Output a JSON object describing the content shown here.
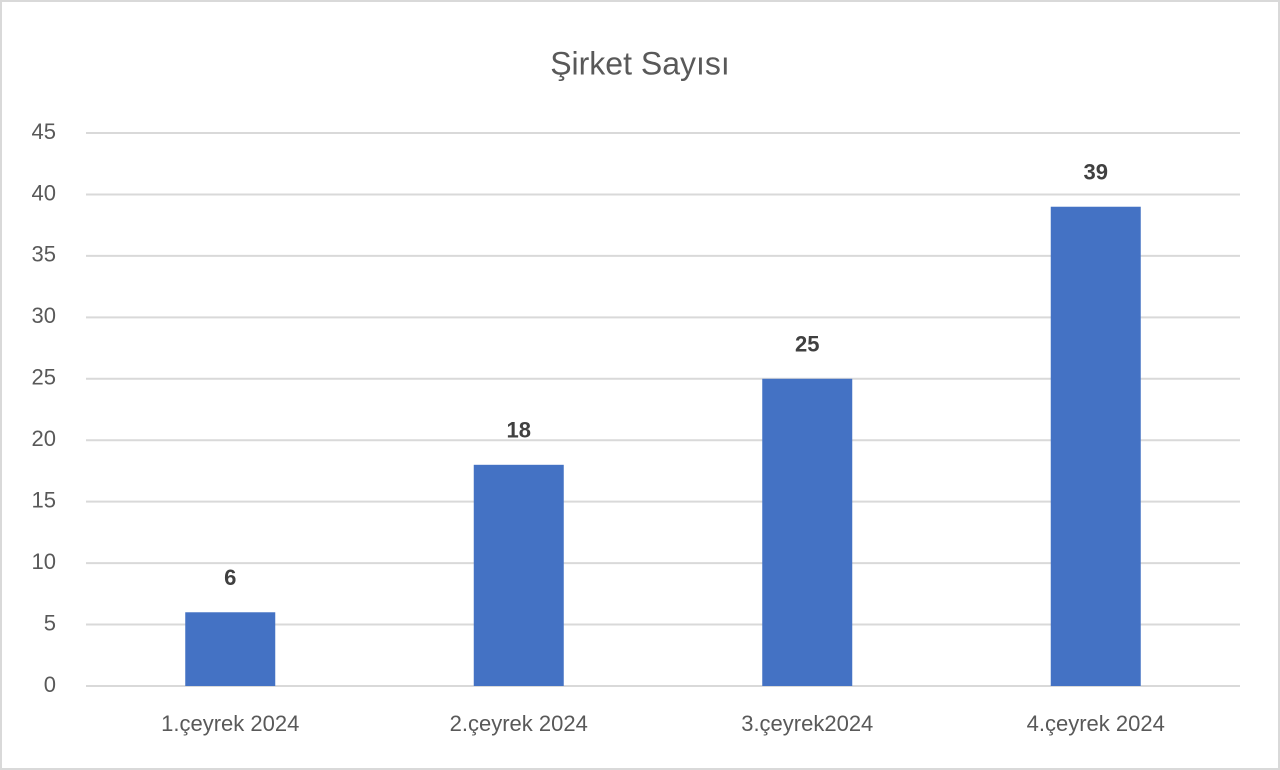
{
  "chart_data": {
    "type": "bar",
    "title": "Şirket Sayısı",
    "categories": [
      "1.çeyrek 2024",
      "2.çeyrek 2024",
      "3.çeyrek2024",
      "4.çeyrek 2024"
    ],
    "values": [
      6,
      18,
      25,
      39
    ],
    "color": "#4472c4",
    "ylim": [
      0,
      45
    ],
    "yticks": [
      0,
      5,
      10,
      15,
      20,
      25,
      30,
      35,
      40,
      45
    ],
    "grid": true
  }
}
